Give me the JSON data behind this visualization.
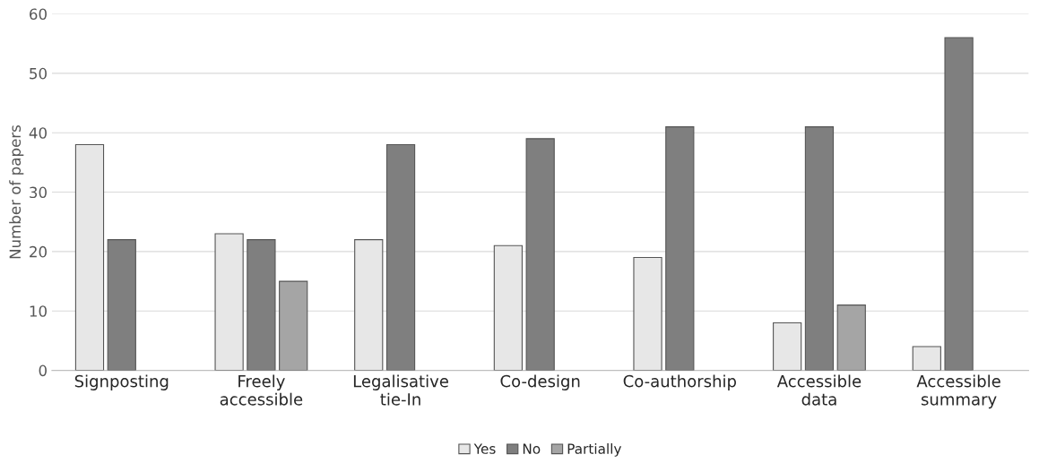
{
  "chart_data": {
    "type": "bar",
    "ylabel": "Number of papers",
    "categories": [
      "Signposting",
      "Freely\naccessible",
      "Legalisative\ntie-In",
      "Co-design",
      "Co-authorship",
      "Accessible\ndata",
      "Accessible\nsummary"
    ],
    "series": [
      {
        "name": "Yes",
        "color": "#e7e7e7",
        "values": [
          38,
          23,
          22,
          21,
          19,
          8,
          4
        ]
      },
      {
        "name": "No",
        "color": "#7f7f7f",
        "values": [
          22,
          22,
          38,
          39,
          41,
          41,
          56
        ]
      },
      {
        "name": "Partially",
        "color": "#a5a5a5",
        "values": [
          null,
          15,
          null,
          null,
          null,
          11,
          null
        ]
      }
    ],
    "ylim": [
      0,
      60
    ],
    "yticks": [
      0,
      10,
      20,
      30,
      40,
      50,
      60
    ],
    "grid": "y",
    "legend": "bottom"
  }
}
